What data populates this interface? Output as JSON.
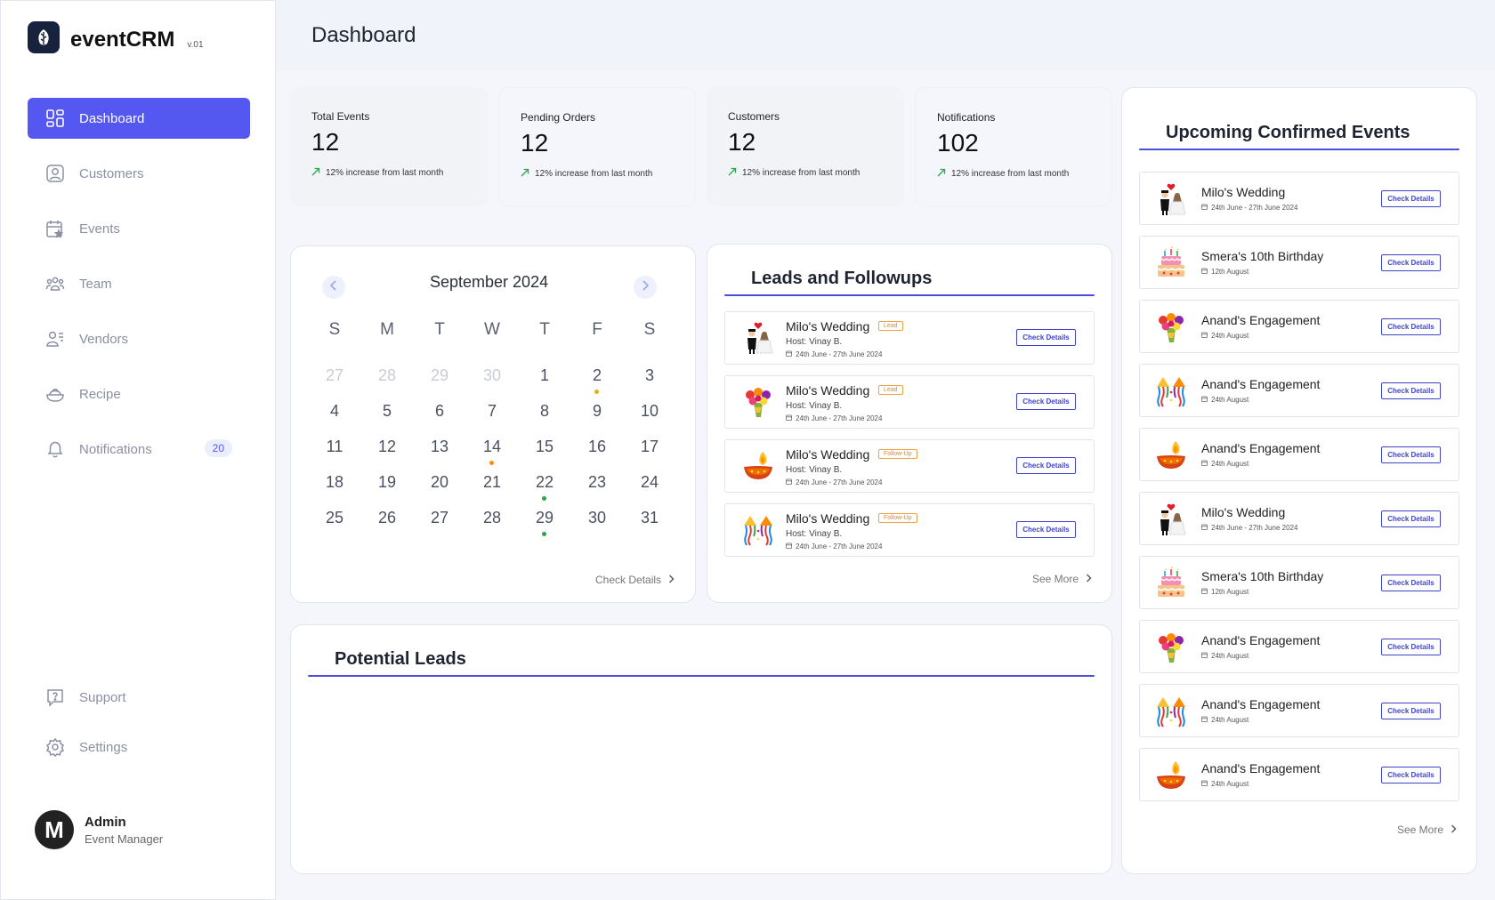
{
  "app": {
    "name": "eventCRM",
    "version": "v.01"
  },
  "sidebar": {
    "items": [
      {
        "label": "Dashboard",
        "icon": "dashboard-icon"
      },
      {
        "label": "Customers",
        "icon": "customers-icon"
      },
      {
        "label": "Events",
        "icon": "events-icon"
      },
      {
        "label": "Team",
        "icon": "team-icon"
      },
      {
        "label": "Vendors",
        "icon": "vendors-icon"
      },
      {
        "label": "Recipe",
        "icon": "recipe-icon"
      },
      {
        "label": "Notifications",
        "icon": "bell-icon",
        "badge": "20"
      }
    ],
    "bottom": [
      {
        "label": "Support",
        "icon": "support-icon"
      },
      {
        "label": "Settings",
        "icon": "settings-icon"
      }
    ]
  },
  "user": {
    "initial": "M",
    "name": "Admin",
    "role": "Event Manager"
  },
  "header": {
    "title": "Dashboard"
  },
  "stats": [
    {
      "label": "Total Events",
      "value": "12",
      "trend": "12% increase from last month"
    },
    {
      "label": "Pending Orders",
      "value": "12",
      "trend": "12% increase from last month"
    },
    {
      "label": "Customers",
      "value": "12",
      "trend": "12% increase from last month"
    },
    {
      "label": "Notifications",
      "value": "102",
      "trend": "12% increase from last month"
    }
  ],
  "calendar": {
    "title": "September 2024",
    "weekdays": [
      "S",
      "M",
      "T",
      "W",
      "T",
      "F",
      "S"
    ],
    "weeks": [
      [
        "27",
        "28",
        "29",
        "30",
        "1",
        "2",
        "3"
      ],
      [
        "4",
        "5",
        "6",
        "7",
        "8",
        "9",
        "10"
      ],
      [
        "11",
        "12",
        "13",
        "14",
        "15",
        "16",
        "17"
      ],
      [
        "18",
        "19",
        "20",
        "21",
        "22",
        "23",
        "24"
      ],
      [
        "25",
        "26",
        "27",
        "28",
        "29",
        "30",
        "31"
      ]
    ],
    "muted_first_row": 4,
    "dots": [
      {
        "day": "2",
        "color": "#d9b11c"
      },
      {
        "day": "14",
        "color": "#f0901c"
      },
      {
        "day": "22",
        "color": "#28a745"
      },
      {
        "day": "29",
        "color": "#28a745"
      }
    ],
    "link": "Check Details"
  },
  "leads": {
    "title": "Leads and Followups",
    "items": [
      {
        "title": "Milo's Wedding",
        "tag": "Lead",
        "host": "Host: Vinay B.",
        "date": "24th June - 27th June 2024",
        "icon": "wedding-couple-icon",
        "button": "Check Details"
      },
      {
        "title": "Milo's Wedding",
        "tag": "Lead",
        "host": "Host: Vinay B.",
        "date": "24th June - 27th June 2024",
        "icon": "bouquet-icon",
        "button": "Check Details"
      },
      {
        "title": "Milo's Wedding",
        "tag": "Follow-Up",
        "host": "Host: Vinay B.",
        "date": "24th June - 27th June 2024",
        "icon": "diya-lamp-icon",
        "button": "Check Details"
      },
      {
        "title": "Milo's Wedding",
        "tag": "Follow-Up",
        "host": "Host: Vinay B.",
        "date": "24th June - 27th June 2024",
        "icon": "party-popper-icon",
        "button": "Check Details"
      }
    ],
    "more": "See More"
  },
  "potential": {
    "title": "Potential Leads"
  },
  "upcoming": {
    "title": "Upcoming Confirmed Events",
    "items": [
      {
        "title": "Milo's Wedding",
        "date": "24th June - 27th June 2024",
        "icon": "wedding-couple-icon",
        "button": "Check Details"
      },
      {
        "title": "Smera's 10th Birthday",
        "date": "12th August",
        "icon": "birthday-cake-icon",
        "button": "Check Details"
      },
      {
        "title": "Anand's Engagement",
        "date": "24th August",
        "icon": "bouquet-icon",
        "button": "Check Details"
      },
      {
        "title": "Anand's Engagement",
        "date": "24th August",
        "icon": "party-popper-icon",
        "button": "Check Details"
      },
      {
        "title": "Anand's Engagement",
        "date": "24th August",
        "icon": "diya-lamp-icon",
        "button": "Check Details"
      },
      {
        "title": "Milo's Wedding",
        "date": "24th June - 27th June 2024",
        "icon": "wedding-couple-icon",
        "button": "Check Details"
      },
      {
        "title": "Smera's 10th Birthday",
        "date": "12th August",
        "icon": "birthday-cake-icon",
        "button": "Check Details"
      },
      {
        "title": "Anand's Engagement",
        "date": "24th August",
        "icon": "bouquet-icon",
        "button": "Check Details"
      },
      {
        "title": "Anand's Engagement",
        "date": "24th August",
        "icon": "party-popper-icon",
        "button": "Check Details"
      },
      {
        "title": "Anand's Engagement",
        "date": "24th August",
        "icon": "diya-lamp-icon",
        "button": "Check Details"
      }
    ],
    "more": "See More"
  },
  "colors": {
    "accent": "#5457f0",
    "rule": "#4b4fd4",
    "tag": "#f0a14a"
  }
}
